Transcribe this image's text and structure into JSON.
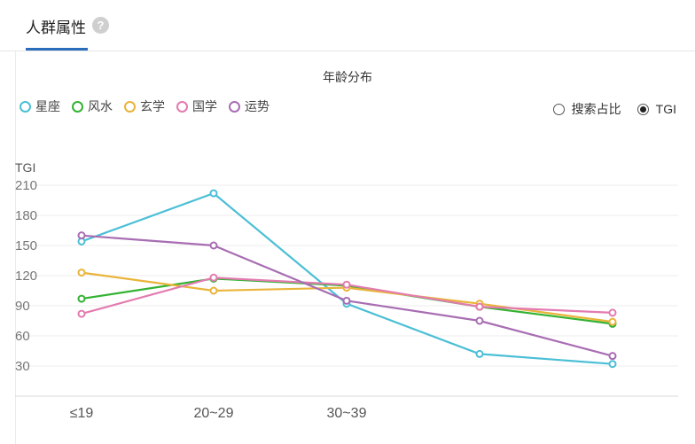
{
  "tab": {
    "title": "人群属性",
    "help": "?"
  },
  "chart_title": "年龄分布",
  "toggle": [
    {
      "label": "搜索占比",
      "selected": false
    },
    {
      "label": "TGI",
      "selected": true
    }
  ],
  "chart_data": {
    "type": "line",
    "title": "年龄分布",
    "ylabel": "TGI",
    "xlabel": "",
    "categories": [
      "≤19",
      "20~29",
      "30~39",
      "",
      ""
    ],
    "yticks": [
      30,
      60,
      90,
      120,
      150,
      180,
      210
    ],
    "ylim": [
      0,
      225
    ],
    "grid": true,
    "legend_position": "top-left",
    "series": [
      {
        "name": "星座",
        "color": "#4bbfd6",
        "values": [
          154,
          202,
          92,
          42,
          32
        ]
      },
      {
        "name": "风水",
        "color": "#33b233",
        "values": [
          97,
          117,
          110,
          89,
          72
        ]
      },
      {
        "name": "玄学",
        "color": "#e9b43a",
        "values": [
          123,
          105,
          108,
          92,
          74
        ]
      },
      {
        "name": "国学",
        "color": "#e37bb0",
        "values": [
          82,
          118,
          111,
          89,
          83
        ]
      },
      {
        "name": "运势",
        "color": "#a86db3",
        "values": [
          160,
          150,
          95,
          75,
          40
        ]
      }
    ]
  }
}
